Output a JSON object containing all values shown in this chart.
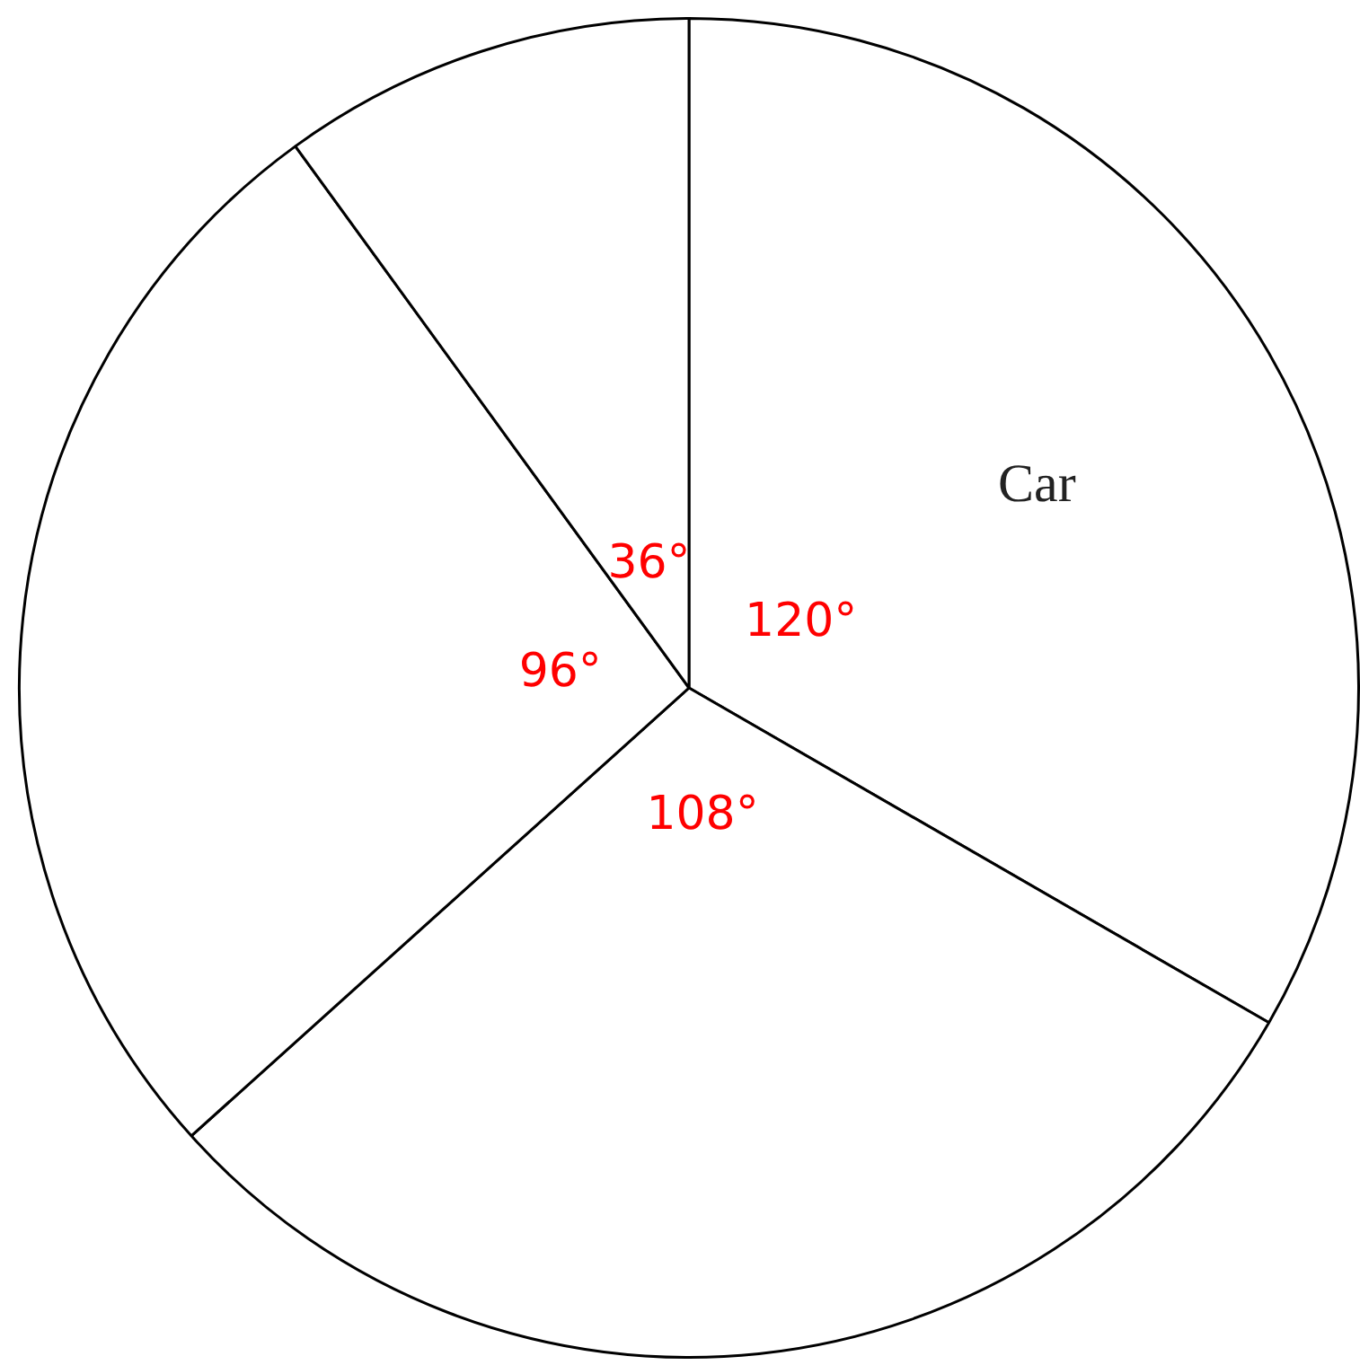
{
  "chart_data": {
    "type": "pie",
    "categories": [
      "Car",
      null,
      null,
      null
    ],
    "values": [
      120,
      108,
      96,
      36
    ],
    "colors": [
      "#ffffff",
      "#ffffff",
      "#ffffff",
      "#ffffff"
    ],
    "value_labels": [
      "120°",
      "108°",
      "96°",
      "36°"
    ]
  }
}
